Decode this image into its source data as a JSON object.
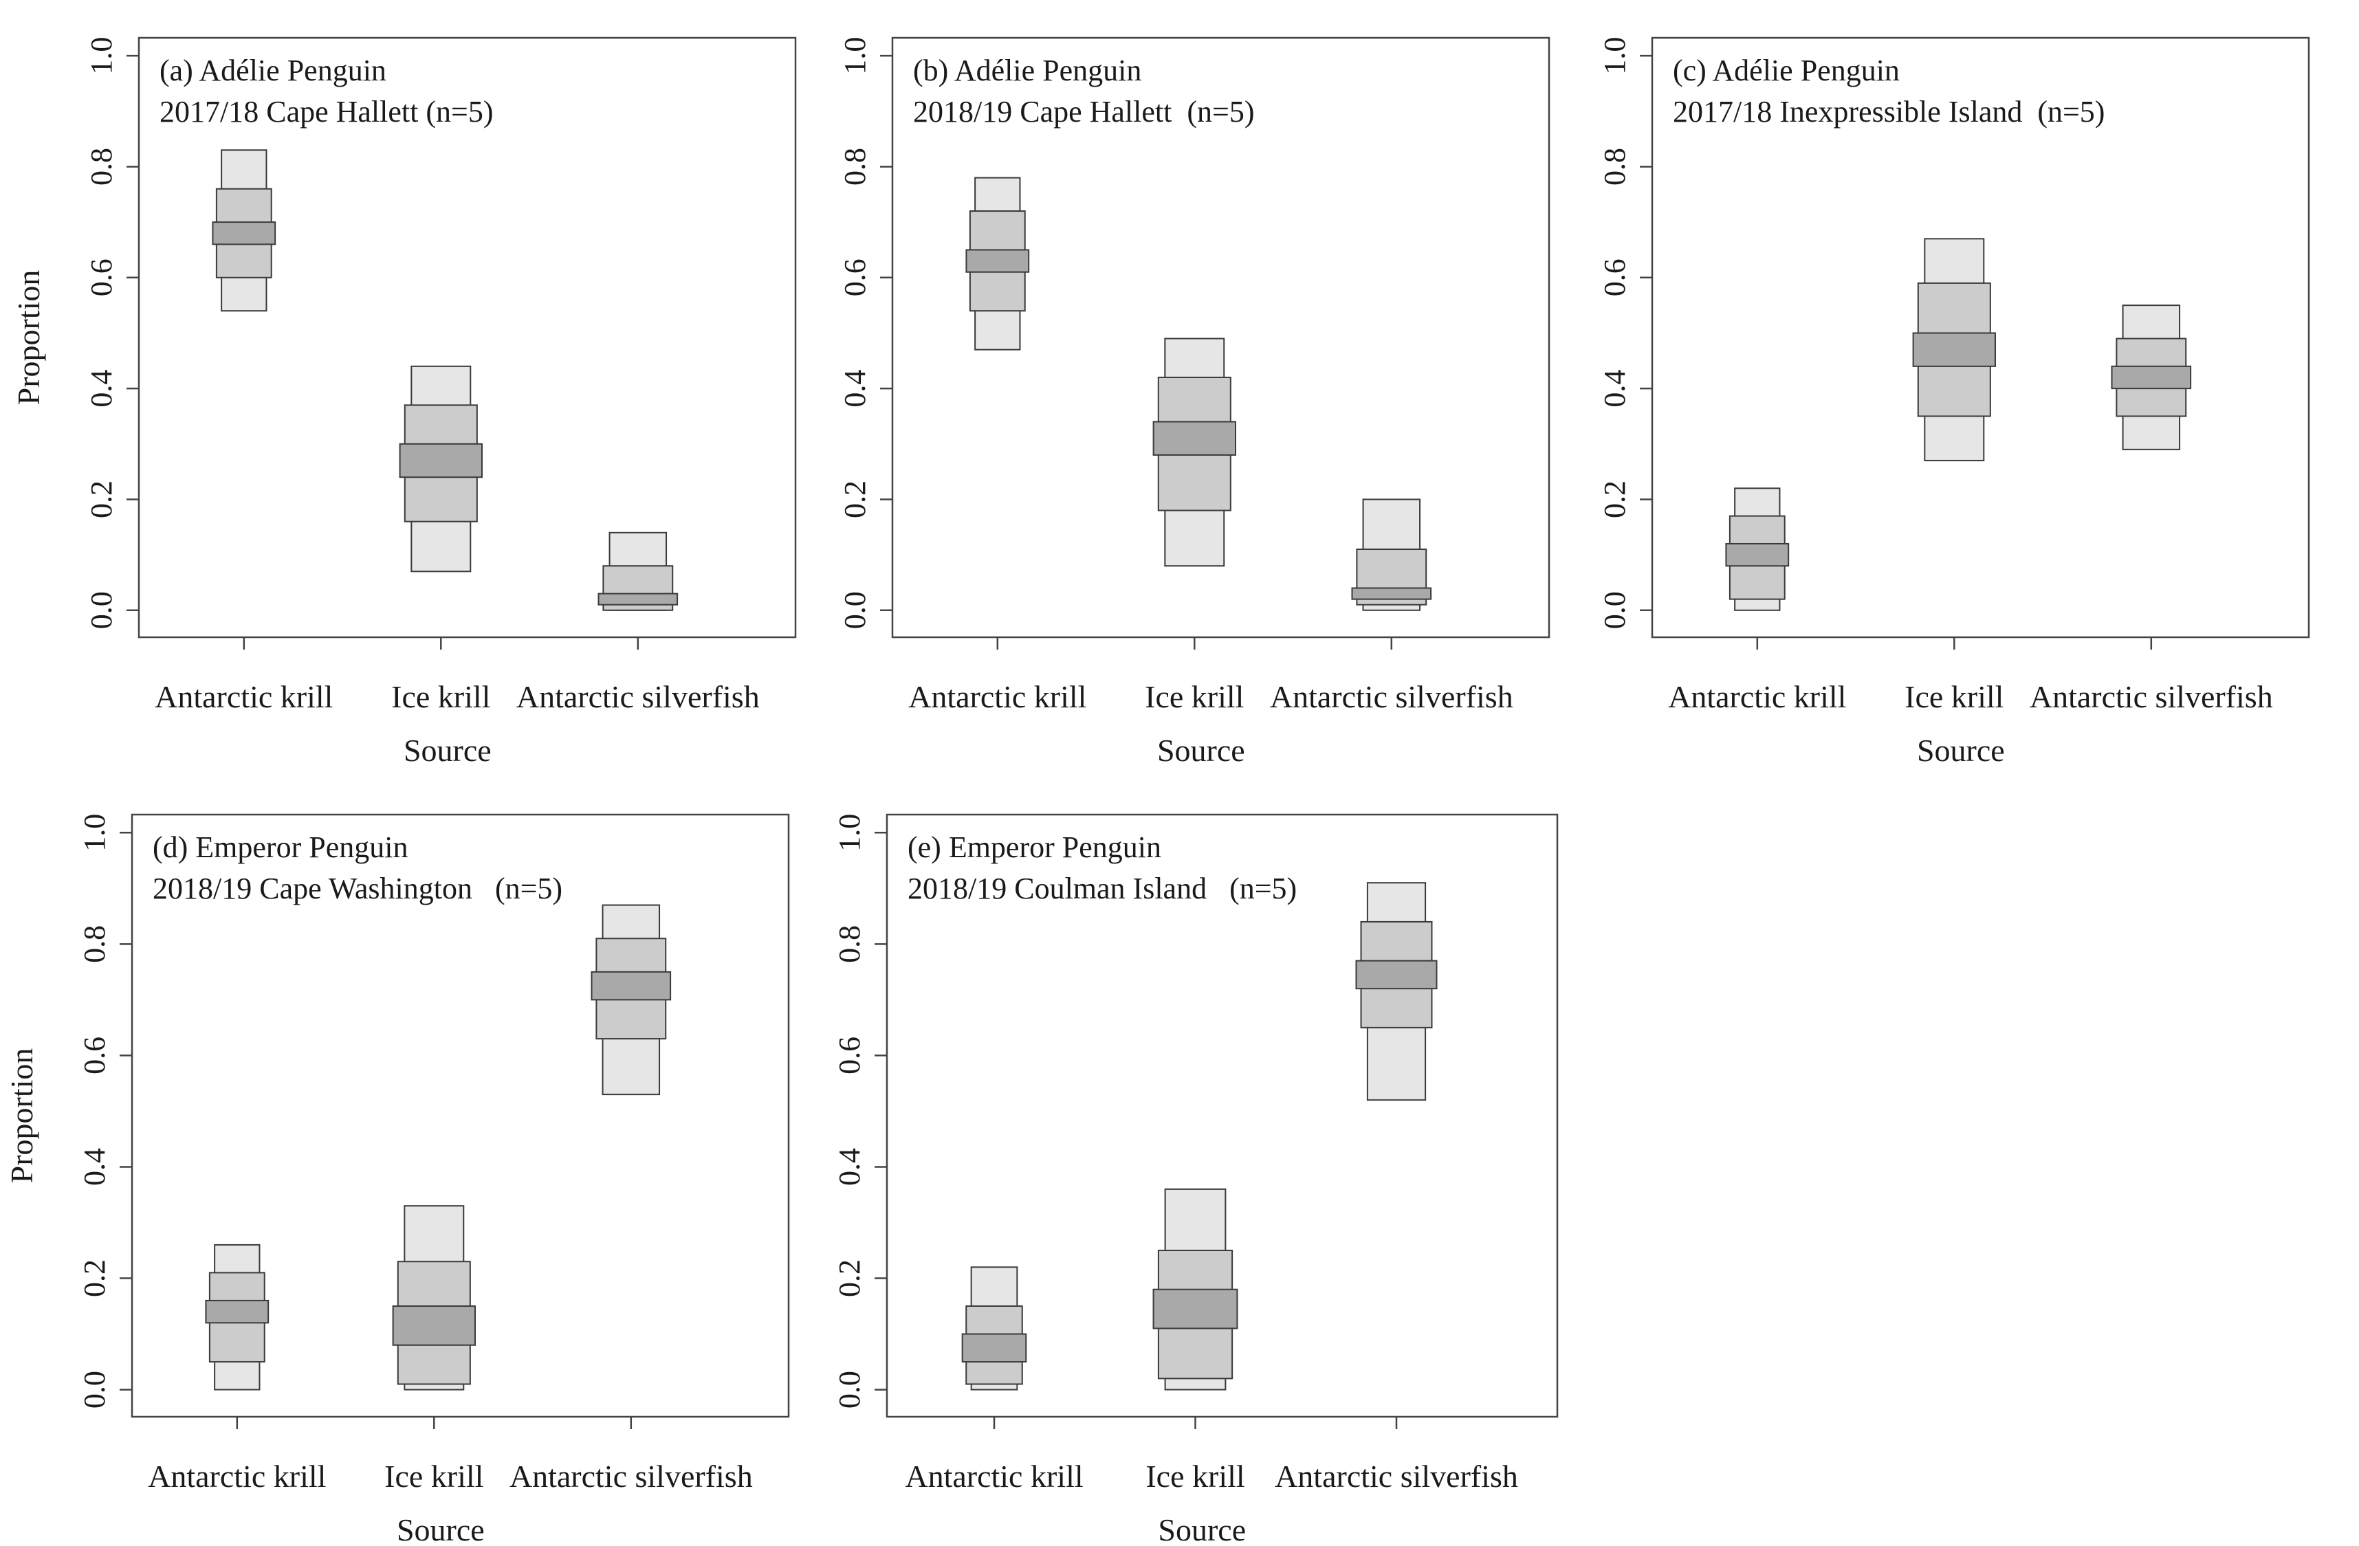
{
  "colors": {
    "outer_box": "#e6e6e6",
    "middle_box": "#cccccc",
    "inner_box": "#a9a9a9",
    "stroke": "#3a3a3a"
  },
  "chart_data": [
    {
      "type": "boxplot",
      "title_line1": "(a) Adélie Penguin",
      "title_line2": "2017/18 Cape Hallett (n=5)",
      "xlabel": "Source",
      "ylabel": "Proportion",
      "categories": [
        "Antarctic krill",
        "Ice krill",
        "Antarctic silverfish"
      ],
      "ylim": [
        0,
        1
      ],
      "yticks": [
        "0.0",
        "0.2",
        "0.4",
        "0.6",
        "0.8",
        "1.0"
      ],
      "ranges": [
        {
          "outer": [
            0.54,
            0.83
          ],
          "middle": [
            0.6,
            0.76
          ],
          "inner": [
            0.66,
            0.7
          ]
        },
        {
          "outer": [
            0.07,
            0.44
          ],
          "middle": [
            0.16,
            0.37
          ],
          "inner": [
            0.24,
            0.3
          ]
        },
        {
          "outer": [
            0.0,
            0.14
          ],
          "middle": [
            0.0,
            0.08
          ],
          "inner": [
            0.01,
            0.03
          ]
        }
      ]
    },
    {
      "type": "boxplot",
      "title_line1": "(b) Adélie Penguin",
      "title_line2": "2018/19 Cape Hallett  (n=5)",
      "xlabel": "Source",
      "ylabel": "",
      "categories": [
        "Antarctic krill",
        "Ice krill",
        "Antarctic silverfish"
      ],
      "ylim": [
        0,
        1
      ],
      "yticks": [
        "0.0",
        "0.2",
        "0.4",
        "0.6",
        "0.8",
        "1.0"
      ],
      "ranges": [
        {
          "outer": [
            0.47,
            0.78
          ],
          "middle": [
            0.54,
            0.72
          ],
          "inner": [
            0.61,
            0.65
          ]
        },
        {
          "outer": [
            0.08,
            0.49
          ],
          "middle": [
            0.18,
            0.42
          ],
          "inner": [
            0.28,
            0.34
          ]
        },
        {
          "outer": [
            0.0,
            0.2
          ],
          "middle": [
            0.01,
            0.11
          ],
          "inner": [
            0.02,
            0.04
          ]
        }
      ]
    },
    {
      "type": "boxplot",
      "title_line1": "(c) Adélie Penguin",
      "title_line2": "2017/18 Inexpressible Island  (n=5)",
      "xlabel": "Source",
      "ylabel": "",
      "categories": [
        "Antarctic krill",
        "Ice krill",
        "Antarctic silverfish"
      ],
      "ylim": [
        0,
        1
      ],
      "yticks": [
        "0.0",
        "0.2",
        "0.4",
        "0.6",
        "0.8",
        "1.0"
      ],
      "ranges": [
        {
          "outer": [
            0.0,
            0.22
          ],
          "middle": [
            0.02,
            0.17
          ],
          "inner": [
            0.08,
            0.12
          ]
        },
        {
          "outer": [
            0.27,
            0.67
          ],
          "middle": [
            0.35,
            0.59
          ],
          "inner": [
            0.44,
            0.5
          ]
        },
        {
          "outer": [
            0.29,
            0.55
          ],
          "middle": [
            0.35,
            0.49
          ],
          "inner": [
            0.4,
            0.44
          ]
        }
      ]
    },
    {
      "type": "boxplot",
      "title_line1": "(d) Emperor Penguin",
      "title_line2": "2018/19 Cape Washington   (n=5)",
      "xlabel": "Source",
      "ylabel": "Proportion",
      "categories": [
        "Antarctic krill",
        "Ice krill",
        "Antarctic silverfish"
      ],
      "ylim": [
        0,
        1
      ],
      "yticks": [
        "0.0",
        "0.2",
        "0.4",
        "0.6",
        "0.8",
        "1.0"
      ],
      "ranges": [
        {
          "outer": [
            0.0,
            0.26
          ],
          "middle": [
            0.05,
            0.21
          ],
          "inner": [
            0.12,
            0.16
          ]
        },
        {
          "outer": [
            0.0,
            0.33
          ],
          "middle": [
            0.01,
            0.23
          ],
          "inner": [
            0.08,
            0.15
          ]
        },
        {
          "outer": [
            0.53,
            0.87
          ],
          "middle": [
            0.63,
            0.81
          ],
          "inner": [
            0.7,
            0.75
          ]
        }
      ]
    },
    {
      "type": "boxplot",
      "title_line1": "(e) Emperor Penguin",
      "title_line2": "2018/19 Coulman Island   (n=5)",
      "xlabel": "Source",
      "ylabel": "",
      "categories": [
        "Antarctic krill",
        "Ice krill",
        "Antarctic silverfish"
      ],
      "ylim": [
        0,
        1
      ],
      "yticks": [
        "0.0",
        "0.2",
        "0.4",
        "0.6",
        "0.8",
        "1.0"
      ],
      "ranges": [
        {
          "outer": [
            0.0,
            0.22
          ],
          "middle": [
            0.01,
            0.15
          ],
          "inner": [
            0.05,
            0.1
          ]
        },
        {
          "outer": [
            0.0,
            0.36
          ],
          "middle": [
            0.02,
            0.25
          ],
          "inner": [
            0.11,
            0.18
          ]
        },
        {
          "outer": [
            0.52,
            0.91
          ],
          "middle": [
            0.65,
            0.84
          ],
          "inner": [
            0.72,
            0.77
          ]
        }
      ]
    }
  ]
}
